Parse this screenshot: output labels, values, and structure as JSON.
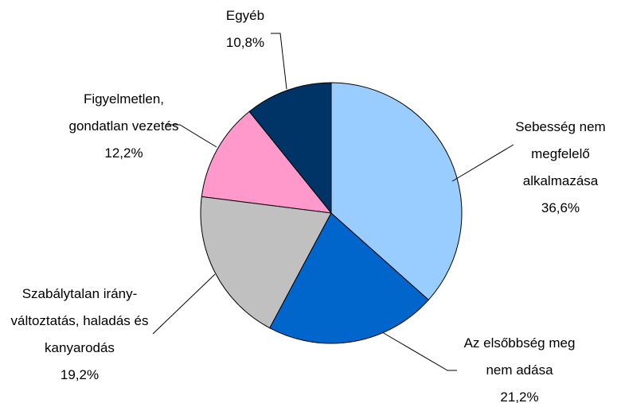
{
  "chart_data": {
    "type": "pie",
    "categories": [
      "Sebesség nem megfelelő alkalmazása",
      "Az elsőbbség meg nem adása",
      "Szabálytalan irány-változtatás, haladás és kanyarodás",
      "Figyelmetlen, gondatlan vezetés",
      "Egyéb"
    ],
    "values": [
      36.6,
      21.2,
      19.2,
      12.2,
      10.8
    ],
    "value_labels": [
      "36,6%",
      "21,2%",
      "19,2%",
      "12,2%",
      "10,8%"
    ],
    "colors": [
      "#99ccff",
      "#0066cc",
      "#c0c0c0",
      "#ff99cc",
      "#003366"
    ]
  }
}
